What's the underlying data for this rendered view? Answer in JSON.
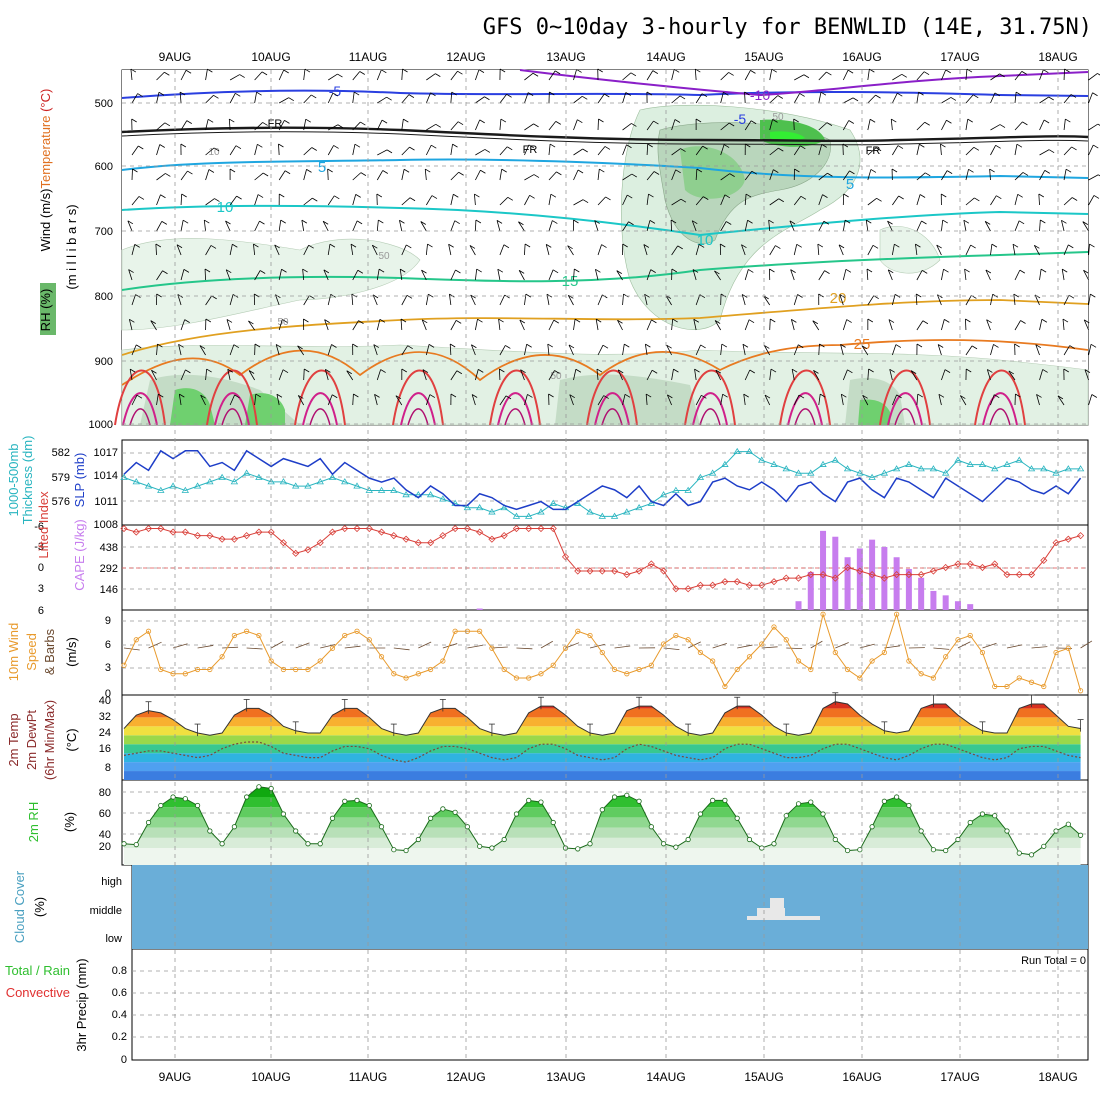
{
  "title": "GFS 0~10day 3-hourly for BENWLID (14E, 31.75N)",
  "dates": [
    "9AUG",
    "10AUG",
    "11AUG",
    "12AUG",
    "13AUG",
    "14AUG",
    "15AUG",
    "16AUG",
    "17AUG",
    "18AUG"
  ],
  "panels": {
    "upper": {
      "label_parts": [
        {
          "text": "Wind",
          "color": "#000000"
        },
        {
          "text": " (m/s)",
          "color": "#000000"
        },
        {
          "text": "Temperature ",
          "color": "#e07020"
        },
        {
          "text": "(°C)",
          "color": "#cc2222"
        }
      ],
      "rh_label": "RH (%)",
      "ylabel": "(m i l l i b a r s)",
      "yticks": [
        "500",
        "600",
        "700",
        "800",
        "900",
        "1000"
      ],
      "contour_labels": [
        "-10",
        "-5",
        "-5",
        "FR",
        "FR",
        "FR",
        "5",
        "5",
        "10",
        "10",
        "15",
        "20",
        "25",
        "10",
        "50",
        "50",
        "50",
        "50"
      ]
    },
    "slp": {
      "label_left": "Thickness (dm)",
      "label_left2": "1000-500mb",
      "label_right": "SLP (mb)",
      "yticks_left": [
        "582",
        "579",
        "576"
      ],
      "yticks_right": [
        "1017",
        "1014",
        "1011",
        "1008"
      ]
    },
    "cape": {
      "label_left": "Lifted Index",
      "label_right": "CAPE (J/kg)",
      "yticks_left": [
        "-6",
        "-3",
        "0",
        "3",
        "6"
      ],
      "yticks_right": [
        "438",
        "292",
        "146"
      ]
    },
    "wind10": {
      "label1": "10m Wind",
      "label2": "Speed",
      "label3": "& Barbs",
      "unit": "(m/s)",
      "yticks": [
        "9",
        "6",
        "3",
        "0"
      ]
    },
    "temp2m": {
      "label1": "2m Temp",
      "label2": "2m DewPt",
      "label3": "(6hr Min/Max)",
      "unit": "(°C)",
      "yticks": [
        "40",
        "32",
        "24",
        "16",
        "8"
      ]
    },
    "rh2m": {
      "label": "2m RH",
      "unit": "(%)",
      "yticks": [
        "80",
        "60",
        "40",
        "20"
      ]
    },
    "cloud": {
      "label": "Cloud Cover",
      "unit": "(%)",
      "levels": [
        "high",
        "middle",
        "low"
      ]
    },
    "precip": {
      "label1": "Total / Rain",
      "label2": "Convective",
      "label3": "3hr Precip (mm)",
      "yticks": [
        "0.8",
        "0.6",
        "0.4",
        "0.2",
        "0"
      ],
      "run_total": "Run Total = 0"
    }
  },
  "colors": {
    "cape_bar": "#c77dee",
    "lifted_index": "#d9403a",
    "slp": "#1e3ec8",
    "thickness": "#2ab5c0",
    "wind_speed": "#e89a2c",
    "cloud_bg": "#6aaed8",
    "rh_green": "#2fbf2f"
  },
  "chart_data": [
    {
      "type": "line",
      "title": "",
      "series": [
        {
          "name": "SLP (mb)",
          "values": [
            1014.5,
            1016.0,
            1015.0,
            1017.5,
            1016.5,
            1017.5,
            1017.5,
            1015.5,
            1016.0,
            1015.0,
            1017.5,
            1016.5,
            1015.5,
            1016.5,
            1016.0,
            1015.5,
            1016.5,
            1014.5,
            1016.0,
            1015.0,
            1014.0,
            1013.5,
            1014.0,
            1012.5,
            1011.5,
            1013.0,
            1012.0,
            1010.5,
            1010.5,
            1012.0,
            1011.5,
            1010.5,
            1010.0,
            1010.5,
            1011.0,
            1010.0,
            1010.0,
            1011.0,
            1012.0,
            1013.0,
            1012.5,
            1011.5,
            1013.0,
            1011.0,
            1010.5,
            1012.0,
            1010.5,
            1011.0,
            1013.5,
            1014.0,
            1013.0,
            1012.5,
            1013.5,
            1012.5,
            1011.0,
            1013.0,
            1013.5,
            1012.0,
            1011.0,
            1013.5,
            1014.0,
            1012.5,
            1011.5,
            1014.0,
            1013.5,
            1012.5,
            1011.5,
            1014.0,
            1013.0,
            1012.0,
            1011.0,
            1012.5,
            1014.0,
            1013.5,
            1012.5,
            1012.0,
            1013.0,
            1012.0,
            1014.0
          ]
        },
        {
          "name": "1000-500mb Thickness (dm)",
          "values": [
            579.5,
            579.0,
            578.5,
            578.0,
            578.5,
            578.0,
            578.5,
            579.0,
            579.5,
            579.0,
            580.0,
            579.5,
            579.0,
            579.0,
            578.5,
            578.5,
            579.0,
            579.5,
            579.0,
            578.5,
            578.0,
            578.0,
            578.0,
            577.5,
            577.5,
            577.5,
            577.0,
            576.5,
            576.0,
            576.0,
            575.5,
            576.0,
            575.0,
            575.0,
            575.5,
            576.5,
            576.0,
            576.5,
            575.5,
            575.0,
            575.0,
            575.5,
            576.0,
            576.5,
            577.5,
            578.0,
            578.0,
            579.5,
            580.0,
            581.0,
            582.5,
            582.5,
            581.5,
            581.0,
            580.5,
            580.0,
            580.0,
            581.0,
            581.5,
            580.5,
            580.0,
            579.5,
            580.0,
            580.5,
            581.0,
            580.5,
            580.5,
            580.0,
            581.5,
            581.0,
            581.0,
            580.5,
            581.0,
            581.5,
            580.5,
            580.5,
            580.0,
            580.5,
            580.5
          ]
        }
      ]
    },
    {
      "type": "bar",
      "title": "",
      "series": [
        {
          "name": "Lifted Index",
          "values": [
            5.5,
            5.0,
            5.5,
            5.5,
            5.0,
            5.0,
            4.5,
            4.5,
            4.0,
            4.0,
            4.5,
            5.0,
            5.0,
            3.5,
            2.0,
            2.5,
            3.5,
            5.0,
            5.5,
            5.5,
            5.5,
            5.0,
            4.5,
            4.0,
            3.5,
            3.5,
            4.5,
            5.5,
            5.5,
            5.0,
            4.0,
            4.5,
            5.5,
            5.5,
            5.5,
            5.5,
            1.5,
            -0.5,
            -0.5,
            -0.5,
            -0.5,
            -1.0,
            -0.5,
            0.5,
            -0.5,
            -3.0,
            -3.0,
            -2.5,
            -2.5,
            -2.0,
            -2.0,
            -2.5,
            -2.5,
            -2.0,
            -1.5,
            -1.5,
            -1.0,
            -1.0,
            -1.5,
            0.0,
            -0.5,
            -1.0,
            -1.5,
            -1.0,
            -1.0,
            -1.0,
            -0.5,
            0.0,
            0.5,
            0.5,
            0.0,
            0.5,
            -1.0,
            -1.0,
            -1.0,
            1.0,
            3.5,
            4.0,
            4.5
          ]
        },
        {
          "name": "CAPE (J/kg)",
          "values": [
            0,
            0,
            0,
            0,
            0,
            0,
            0,
            0,
            0,
            0,
            0,
            0,
            0,
            0,
            0,
            0,
            0,
            0,
            0,
            0,
            0,
            0,
            0,
            0,
            0,
            0,
            0,
            0,
            0,
            10,
            0,
            0,
            0,
            0,
            0,
            0,
            0,
            0,
            0,
            0,
            0,
            0,
            0,
            0,
            0,
            0,
            0,
            0,
            0,
            0,
            0,
            0,
            0,
            0,
            0,
            60,
            260,
            540,
            500,
            360,
            420,
            480,
            430,
            360,
            280,
            220,
            130,
            100,
            60,
            40,
            0,
            0,
            0,
            0,
            0,
            0,
            0,
            0,
            0
          ]
        }
      ]
    },
    {
      "type": "line",
      "title": "",
      "series": [
        {
          "name": "10m Wind Speed (m/s)",
          "values": [
            3.5,
            6.5,
            7.5,
            3.0,
            2.5,
            2.5,
            3.0,
            3.0,
            4.5,
            7.0,
            7.5,
            7.0,
            4.0,
            3.0,
            3.0,
            3.0,
            4.0,
            5.5,
            7.0,
            7.5,
            6.5,
            4.5,
            2.5,
            2.0,
            2.5,
            3.0,
            4.0,
            7.5,
            7.5,
            7.5,
            5.5,
            3.0,
            2.0,
            2.0,
            2.5,
            3.5,
            5.5,
            7.5,
            7.0,
            5.0,
            3.0,
            2.5,
            3.0,
            3.5,
            6.0,
            7.0,
            6.5,
            5.0,
            4.0,
            1.0,
            3.0,
            4.5,
            6.0,
            8.0,
            6.5,
            4.0,
            3.0,
            9.5,
            5.0,
            3.0,
            2.0,
            4.0,
            5.0,
            9.5,
            4.0,
            2.5,
            2.0,
            4.5,
            6.5,
            7.0,
            5.0,
            1.0,
            1.0,
            2.0,
            1.5,
            1.0,
            5.0,
            5.5,
            0.5
          ]
        }
      ]
    },
    {
      "type": "area",
      "title": "",
      "series": [
        {
          "name": "2m Temp (°C)",
          "values": [
            27,
            33,
            35,
            34,
            31,
            27,
            25,
            24,
            25,
            33,
            36,
            36,
            33,
            28,
            26,
            25,
            25,
            33,
            36,
            36,
            32,
            27,
            25,
            24,
            25,
            34,
            36,
            36,
            32,
            27,
            25,
            24,
            25,
            34,
            37,
            37,
            33,
            28,
            25,
            24,
            25,
            35,
            37,
            37,
            33,
            28,
            25,
            24,
            25,
            34,
            37,
            37,
            33,
            28,
            25,
            24,
            25,
            36,
            39,
            38,
            33,
            29,
            26,
            25,
            26,
            36,
            38,
            38,
            33,
            29,
            26,
            25,
            25,
            36,
            38,
            38,
            33,
            28,
            27
          ]
        },
        {
          "name": "2m DewPt (°C)",
          "values": [
            15,
            16,
            17,
            17,
            16,
            15,
            14,
            15,
            18,
            20,
            21,
            21,
            19,
            16,
            15,
            14,
            14,
            17,
            19,
            19,
            18,
            15,
            13,
            12,
            14,
            17,
            19,
            19,
            18,
            16,
            14,
            13,
            14,
            18,
            20,
            20,
            18,
            15,
            14,
            13,
            14,
            18,
            20,
            19,
            17,
            15,
            14,
            13,
            14,
            18,
            20,
            20,
            18,
            16,
            14,
            14,
            15,
            18,
            20,
            20,
            18,
            16,
            14,
            13,
            15,
            18,
            20,
            20,
            18,
            16,
            14,
            13,
            14,
            18,
            19,
            19,
            17,
            15,
            14
          ]
        }
      ]
    },
    {
      "type": "area",
      "title": "",
      "series": [
        {
          "name": "2m RH (%)",
          "values": [
            25,
            24,
            50,
            70,
            80,
            78,
            70,
            40,
            25,
            45,
            80,
            92,
            90,
            60,
            40,
            25,
            25,
            55,
            75,
            76,
            70,
            45,
            18,
            17,
            30,
            55,
            66,
            62,
            45,
            22,
            20,
            30,
            60,
            76,
            74,
            50,
            20,
            19,
            25,
            65,
            80,
            82,
            75,
            45,
            25,
            21,
            30,
            60,
            76,
            76,
            55,
            30,
            20,
            25,
            58,
            72,
            74,
            60,
            30,
            17,
            18,
            45,
            75,
            80,
            70,
            40,
            18,
            17,
            30,
            50,
            60,
            58,
            40,
            14,
            12,
            22,
            40,
            48,
            35
          ]
        }
      ]
    }
  ]
}
